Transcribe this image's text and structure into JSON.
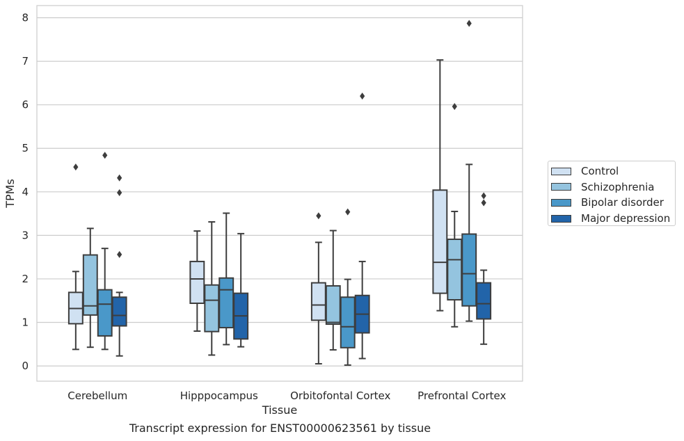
{
  "chart_data": {
    "type": "box",
    "title": "",
    "xlabel": "Tissue",
    "ylabel": "TPMs",
    "caption": "Transcript expression for ENST00000623561 by tissue",
    "categories": [
      "Cerebellum",
      "Hipppocampus",
      "Orbitofontal Cortex",
      "Prefrontal Cortex"
    ],
    "ylim": [
      -0.35,
      8.28
    ],
    "yticks": [
      "0",
      "1",
      "2",
      "3",
      "4",
      "5",
      "6",
      "7",
      "8"
    ],
    "grid": true,
    "legend_position": "right",
    "series": [
      {
        "name": "Control",
        "color": "#d0e1f2",
        "boxes": [
          {
            "whislo": 0.38,
            "q1": 0.97,
            "med": 1.32,
            "q3": 1.69,
            "whishi": 2.17,
            "fliers": [
              4.57
            ]
          },
          {
            "whislo": 0.8,
            "q1": 1.44,
            "med": 2.0,
            "q3": 2.4,
            "whishi": 3.1,
            "fliers": []
          },
          {
            "whislo": 0.05,
            "q1": 1.05,
            "med": 1.4,
            "q3": 1.91,
            "whishi": 2.84,
            "fliers": [
              3.45
            ]
          },
          {
            "whislo": 1.27,
            "q1": 1.67,
            "med": 2.38,
            "q3": 4.04,
            "whishi": 7.03,
            "fliers": []
          }
        ]
      },
      {
        "name": "Schizophrenia",
        "color": "#94c4df",
        "boxes": [
          {
            "whislo": 0.43,
            "q1": 1.17,
            "med": 1.38,
            "q3": 2.55,
            "whishi": 3.16,
            "fliers": []
          },
          {
            "whislo": 0.25,
            "q1": 0.79,
            "med": 1.51,
            "q3": 1.86,
            "whishi": 3.31,
            "fliers": []
          },
          {
            "whislo": 0.37,
            "q1": 0.96,
            "med": 1.0,
            "q3": 1.84,
            "whishi": 3.11,
            "fliers": []
          },
          {
            "whislo": 0.9,
            "q1": 1.52,
            "med": 2.44,
            "q3": 2.91,
            "whishi": 3.55,
            "fliers": [
              5.96
            ]
          }
        ]
      },
      {
        "name": "Bipolar disorder",
        "color": "#4a98c9",
        "boxes": [
          {
            "whislo": 0.38,
            "q1": 0.69,
            "med": 1.42,
            "q3": 1.75,
            "whishi": 2.7,
            "fliers": [
              4.84
            ]
          },
          {
            "whislo": 0.49,
            "q1": 0.88,
            "med": 1.75,
            "q3": 2.02,
            "whishi": 3.51,
            "fliers": []
          },
          {
            "whislo": 0.02,
            "q1": 0.42,
            "med": 0.9,
            "q3": 1.58,
            "whishi": 1.99,
            "fliers": [
              3.54
            ]
          },
          {
            "whislo": 1.03,
            "q1": 1.38,
            "med": 2.12,
            "q3": 3.03,
            "whishi": 4.63,
            "fliers": [
              7.87
            ]
          }
        ]
      },
      {
        "name": "Major depression",
        "color": "#2264a9",
        "boxes": [
          {
            "whislo": 0.23,
            "q1": 0.92,
            "med": 1.16,
            "q3": 1.58,
            "whishi": 1.69,
            "fliers": [
              2.56,
              3.98,
              4.32
            ]
          },
          {
            "whislo": 0.44,
            "q1": 0.62,
            "med": 1.15,
            "q3": 1.67,
            "whishi": 3.04,
            "fliers": []
          },
          {
            "whislo": 0.17,
            "q1": 0.76,
            "med": 1.19,
            "q3": 1.62,
            "whishi": 2.4,
            "fliers": [
              6.2
            ]
          },
          {
            "whislo": 0.5,
            "q1": 1.08,
            "med": 1.43,
            "q3": 1.91,
            "whishi": 2.2,
            "fliers": [
              3.75,
              3.91
            ]
          }
        ]
      }
    ]
  }
}
